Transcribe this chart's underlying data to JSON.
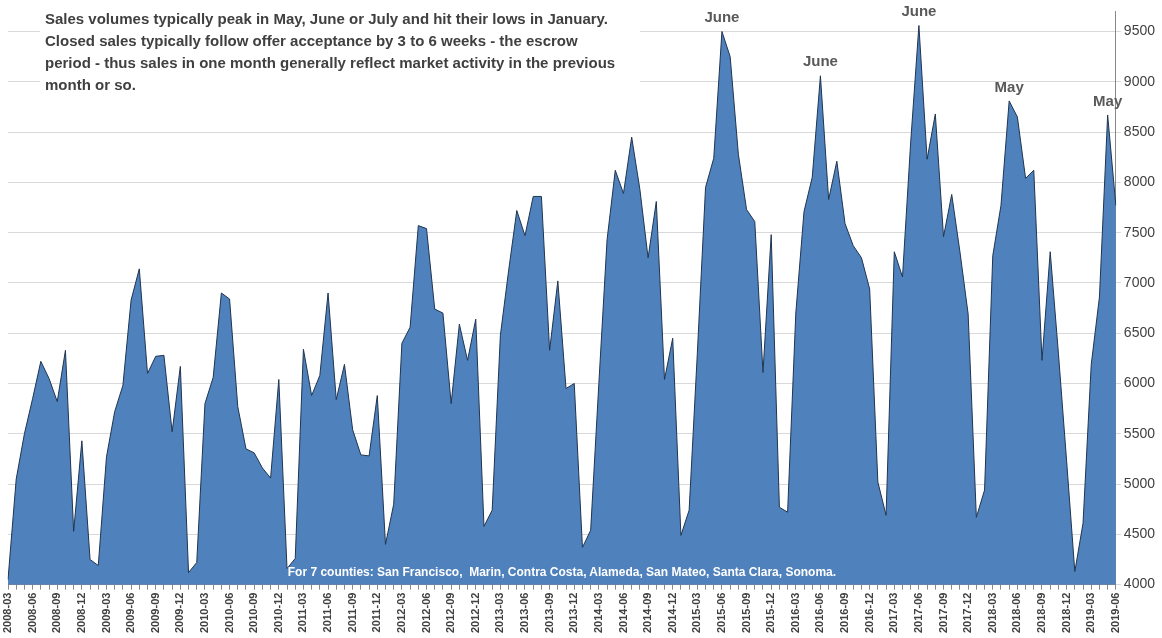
{
  "chart_data": {
    "type": "area",
    "categories": [
      "2008-03",
      null,
      null,
      "2008-06",
      null,
      null,
      "2008-09",
      null,
      null,
      "2008-12",
      null,
      null,
      "2009-03",
      null,
      null,
      "2009-06",
      null,
      null,
      "2009-09",
      null,
      null,
      "2009-12",
      null,
      null,
      "2010-03",
      null,
      null,
      "2010-06",
      null,
      null,
      "2010-09",
      null,
      null,
      "2010-12",
      null,
      null,
      "2011-03",
      null,
      null,
      "2011-06",
      null,
      null,
      "2011-09",
      null,
      null,
      "2011-12",
      null,
      null,
      "2012-03",
      null,
      null,
      "2012-06",
      null,
      null,
      "2012-09",
      null,
      null,
      "2012-12",
      null,
      null,
      "2013-03",
      null,
      null,
      "2013-06",
      null,
      null,
      "2013-09",
      null,
      null,
      "2013-12",
      null,
      null,
      "2014-03",
      null,
      null,
      "2014-06",
      null,
      null,
      "2014-09",
      null,
      null,
      "2014-12",
      null,
      null,
      "2015-03",
      null,
      null,
      "2015-06",
      null,
      null,
      "2015-09",
      null,
      null,
      "2015-12",
      null,
      null,
      "2016-03",
      null,
      null,
      "2016-06",
      null,
      null,
      "2016-09",
      null,
      null,
      "2016-12",
      null,
      null,
      "2017-03",
      null,
      null,
      "2017-06",
      null,
      null,
      "2017-09",
      null,
      null,
      "2017-12",
      null,
      null,
      "2018-03",
      null,
      null,
      "2018-06",
      null,
      null,
      "2018-09",
      null,
      null,
      "2018-12",
      null,
      null,
      "2019-03",
      null,
      null,
      "2019-06"
    ],
    "values": [
      4050,
      5050,
      5500,
      5850,
      6220,
      6050,
      5820,
      6330,
      4530,
      5430,
      4250,
      4190,
      5270,
      5720,
      5980,
      6830,
      7140,
      6100,
      6270,
      6280,
      5520,
      6170,
      4120,
      4220,
      5800,
      6060,
      6900,
      6840,
      5770,
      5350,
      5310,
      5160,
      5060,
      6040,
      4160,
      4260,
      6340,
      5880,
      6080,
      6900,
      5840,
      6190,
      5540,
      5290,
      5280,
      5880,
      4400,
      4800,
      6400,
      6560,
      7570,
      7540,
      6740,
      6700,
      5800,
      6590,
      6230,
      6640,
      4580,
      4740,
      6480,
      7120,
      7720,
      7470,
      7860,
      7860,
      6330,
      7020,
      5950,
      6000,
      4370,
      4540,
      6000,
      7430,
      8120,
      7890,
      8450,
      7930,
      7250,
      7810,
      6040,
      6450,
      4490,
      4740,
      6300,
      7950,
      8240,
      9500,
      9250,
      8280,
      7730,
      7610,
      6110,
      7480,
      4770,
      4720,
      6700,
      7710,
      8050,
      9060,
      7830,
      8210,
      7590,
      7370,
      7250,
      6940,
      5020,
      4690,
      7310,
      7060,
      8400,
      9560,
      8230,
      8680,
      7460,
      7880,
      7310,
      6690,
      4670,
      4940,
      7270,
      7770,
      8810,
      8650,
      8040,
      8120,
      6230,
      7310,
      6300,
      5230,
      4130,
      4610,
      6190,
      6860,
      8670,
      7770
    ],
    "color": "#4f81bd",
    "ylim": [
      4000,
      9700
    ],
    "yticks": [
      4000,
      4500,
      5000,
      5500,
      6000,
      6500,
      7000,
      7500,
      8000,
      8500,
      9000,
      9500
    ],
    "grid": "y",
    "legend": false,
    "annotations": [
      "Sales volumes typically peak in May, June or July and hit their lows in January. Closed sales typically follow offer acceptance by 3 to 6 weeks - the escrow period - thus sales in one month generally reflect market activity in the previous month or so.",
      "For 7 counties: San Francisco,  Marin, Contra Costa, Alameda, San Mateo, Santa Clara, Sonoma.",
      {
        "text": "June",
        "x": "2015-06",
        "y": 9500
      },
      {
        "text": "June",
        "x": "2016-06",
        "y": 9060
      },
      {
        "text": "June",
        "x": "2017-06",
        "y": 9560
      },
      {
        "text": "May",
        "y": 8810
      },
      {
        "text": "May",
        "y": 8670
      }
    ]
  }
}
